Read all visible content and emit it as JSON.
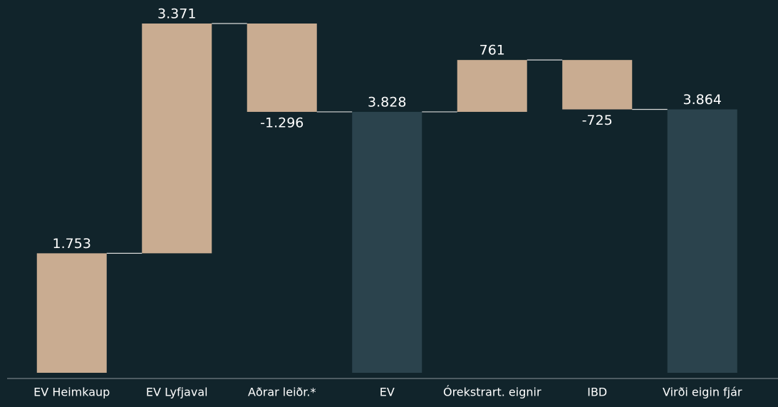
{
  "chart_data": {
    "type": "waterfall",
    "categories": [
      "EV Heimkaup",
      "EV Lyfjaval",
      "Aðrar leiðr.*",
      "EV",
      "Órekstrart. eignir",
      "IBD",
      "Virði eigin fjár"
    ],
    "values": [
      1753,
      3371,
      -1296,
      3828,
      761,
      -725,
      3864
    ],
    "value_labels": [
      "1.753",
      "3.371",
      "-1.296",
      "3.828",
      "761",
      "-725",
      "3.864"
    ],
    "measures": [
      "relative",
      "relative",
      "relative",
      "total",
      "relative",
      "relative",
      "total"
    ],
    "color": "#c9ac91",
    "total_color": "#2b434d",
    "connector_color": "#d9d9d9"
  }
}
